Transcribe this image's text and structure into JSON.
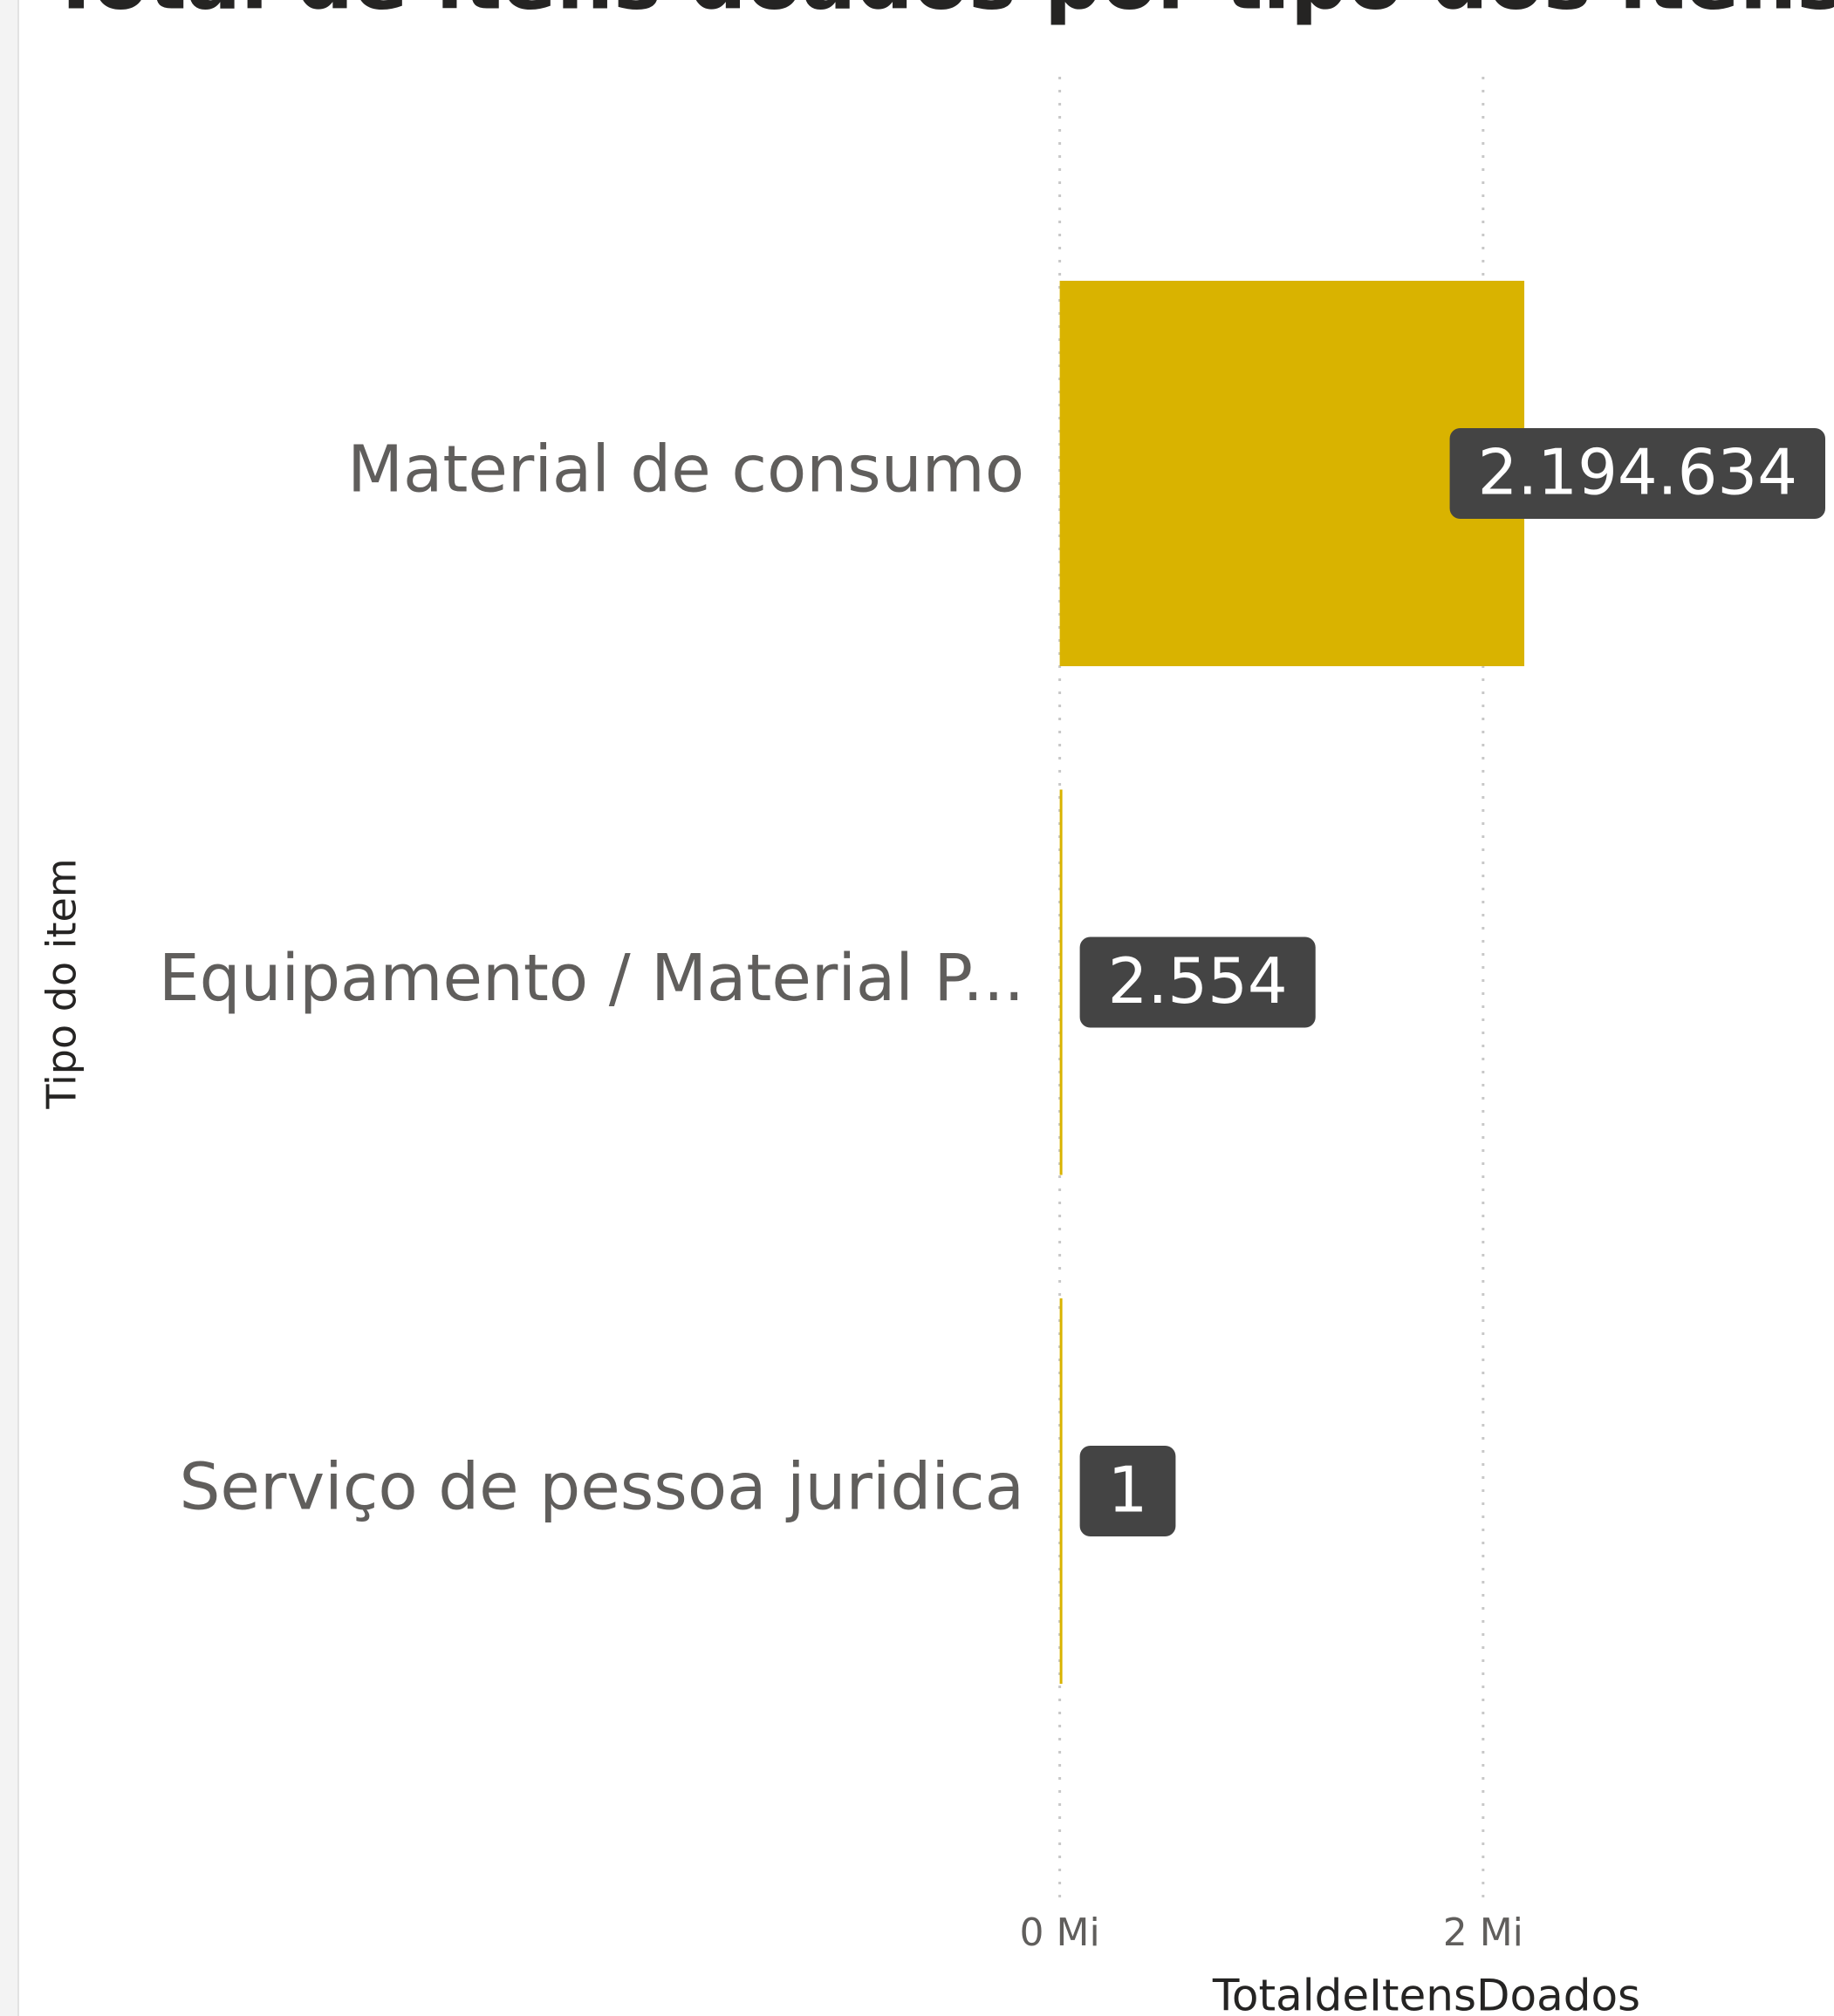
{
  "chart_data": {
    "type": "hbar",
    "title": "Total de itens doados por tipo dos itens",
    "x_label": "TotaldeItensDoados",
    "y_label": "Tipo do item",
    "categories": [
      "Material de consumo",
      "Equipamento / Material P...",
      "Serviço de pessoa juridica"
    ],
    "values": [
      2194634,
      2554,
      1
    ],
    "value_labels": [
      "2.194.634",
      "2.554",
      "1"
    ],
    "color": "#d9b300",
    "xlim": [
      0,
      3600000
    ],
    "xticks": [
      {
        "value": 0,
        "label": "0 Mi"
      },
      {
        "value": 2000000,
        "label": "2 Mi"
      }
    ],
    "grid": true
  }
}
